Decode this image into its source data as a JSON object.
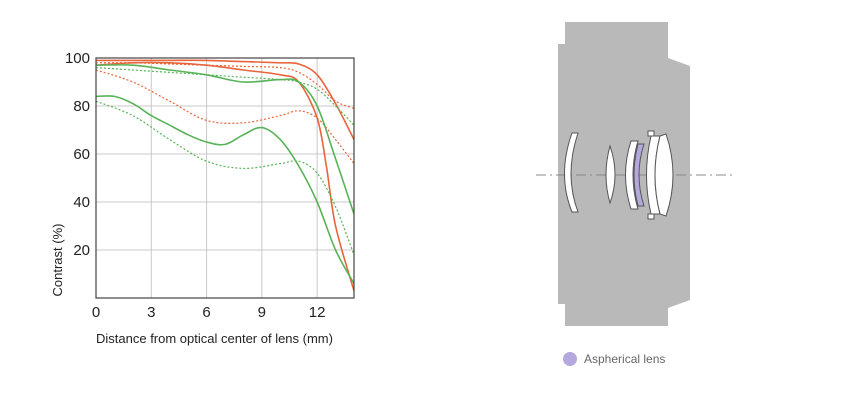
{
  "chart_data": {
    "type": "line",
    "title": "",
    "xlabel": "Distance from optical center of lens (mm)",
    "ylabel": "Contrast (%)",
    "xlim": [
      0,
      14
    ],
    "ylim": [
      0,
      100
    ],
    "xticks": [
      0,
      3,
      6,
      9,
      12
    ],
    "yticks": [
      20,
      40,
      60,
      80,
      100
    ],
    "grid": true,
    "series": [
      {
        "color": "#e8643a",
        "dash": "solid",
        "x": [
          0,
          2,
          4,
          6,
          8,
          10,
          11,
          12,
          13,
          14
        ],
        "y": [
          99,
          99,
          99,
          99,
          98.5,
          98,
          97.5,
          93,
          81,
          66
        ]
      },
      {
        "color": "#e8643a",
        "dash": "dotted",
        "x": [
          0,
          2,
          4,
          6,
          8,
          10,
          11,
          12,
          13,
          14
        ],
        "y": [
          98,
          98,
          97.5,
          97,
          96.5,
          96,
          94,
          89,
          82,
          79
        ]
      },
      {
        "color": "#e8643a",
        "dash": "solid",
        "x": [
          0,
          2,
          4,
          6,
          8,
          10,
          11,
          12,
          12.5,
          13,
          14
        ],
        "y": [
          97,
          98,
          98,
          97,
          95,
          93,
          90,
          75,
          55,
          30,
          3
        ]
      },
      {
        "color": "#e8643a",
        "dash": "dotted",
        "x": [
          0,
          2,
          4,
          6,
          8,
          10,
          11,
          12,
          13,
          14
        ],
        "y": [
          95,
          90,
          82,
          74,
          73,
          76,
          78,
          75,
          66,
          56
        ]
      },
      {
        "color": "#58b358",
        "dash": "solid",
        "x": [
          0,
          2,
          4,
          6,
          8,
          10,
          11,
          12,
          13,
          14
        ],
        "y": [
          97,
          97,
          95,
          93,
          90,
          91,
          90,
          80,
          58,
          35
        ]
      },
      {
        "color": "#58b358",
        "dash": "dotted",
        "x": [
          0,
          2,
          4,
          6,
          8,
          10,
          11,
          12,
          13,
          14
        ],
        "y": [
          96,
          95,
          94,
          93,
          92,
          91,
          90,
          87,
          80,
          72
        ]
      },
      {
        "color": "#58b358",
        "dash": "solid",
        "x": [
          0,
          1,
          2,
          3,
          4,
          5,
          6,
          7,
          8,
          9,
          10,
          11,
          12,
          13,
          14
        ],
        "y": [
          84,
          84,
          81,
          76,
          72,
          68,
          65,
          64,
          68,
          71,
          66,
          55,
          40,
          20,
          6
        ]
      },
      {
        "color": "#58b358",
        "dash": "dotted",
        "x": [
          0,
          2,
          4,
          6,
          8,
          10,
          11,
          12,
          13,
          14
        ],
        "y": [
          82,
          76,
          66,
          57,
          54,
          56,
          57,
          52,
          38,
          18
        ]
      }
    ]
  },
  "legend": {
    "label": "Aspherical lens",
    "color": "#b4a8dd"
  },
  "lens": {
    "body_color": "#b9b9b9",
    "element_outline": "#555555",
    "aspherical_color": "#b4a8dd"
  }
}
